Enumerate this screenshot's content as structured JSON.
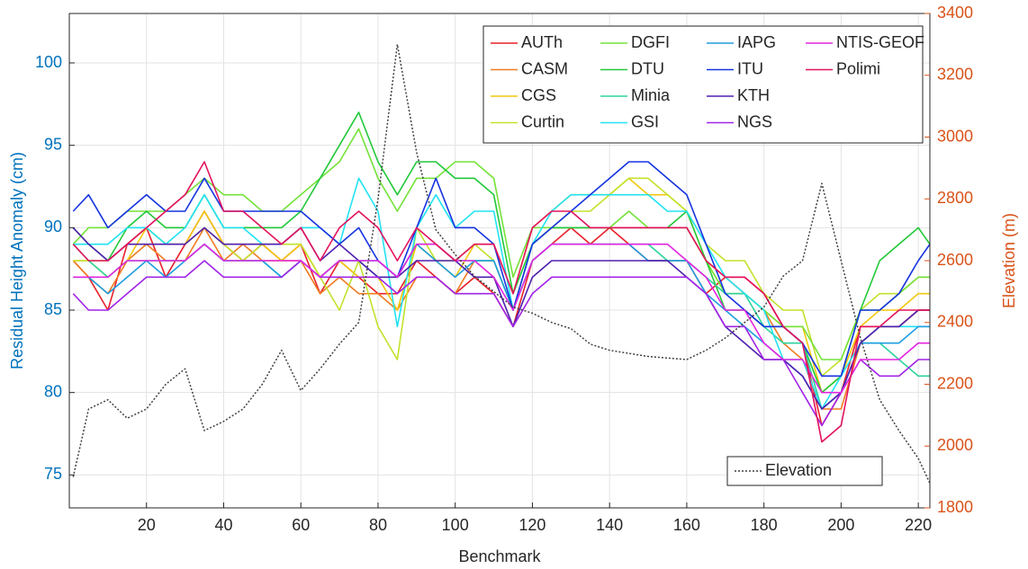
{
  "chart_data": {
    "type": "line",
    "x_label": "Benchmark",
    "y_label": "Residual Height Anomaly (cm)",
    "y2_label": "Elevation (m)",
    "x": [
      1,
      5,
      10,
      15,
      20,
      25,
      30,
      35,
      40,
      45,
      50,
      55,
      60,
      65,
      70,
      75,
      80,
      85,
      90,
      95,
      100,
      105,
      110,
      115,
      120,
      125,
      130,
      135,
      140,
      145,
      150,
      155,
      160,
      165,
      170,
      175,
      180,
      185,
      190,
      195,
      200,
      205,
      210,
      215,
      220,
      223
    ],
    "xlim": [
      0,
      223
    ],
    "xticks": [
      20,
      40,
      60,
      80,
      100,
      120,
      140,
      160,
      180,
      200,
      220
    ],
    "ylim": [
      73,
      103
    ],
    "yticks": [
      75,
      80,
      85,
      90,
      95,
      100
    ],
    "y2lim": [
      1800,
      3400
    ],
    "y2ticks": [
      1800,
      2000,
      2200,
      2400,
      2600,
      2800,
      3000,
      3200,
      3400
    ],
    "grid": true,
    "legend": "upper right",
    "series": [
      {
        "name": "AUTh",
        "color": "#e8202a",
        "values": [
          88,
          87,
          85,
          89,
          90,
          87,
          89,
          91,
          89,
          88,
          89,
          88,
          89,
          86,
          88,
          87,
          86,
          86,
          88,
          87,
          86,
          87,
          86,
          84,
          88,
          89,
          90,
          89,
          90,
          89,
          88,
          88,
          88,
          86,
          87,
          87,
          86,
          84,
          83,
          78,
          80,
          84,
          84,
          84,
          85,
          85
        ]
      },
      {
        "name": "CASM",
        "color": "#f07c20",
        "values": [
          88,
          87,
          86,
          88,
          89,
          88,
          88,
          90,
          88,
          89,
          88,
          88,
          88,
          86,
          87,
          86,
          86,
          85,
          87,
          87,
          86,
          88,
          88,
          85,
          89,
          90,
          90,
          90,
          90,
          90,
          90,
          90,
          90,
          88,
          87,
          86,
          85,
          83,
          82,
          79,
          79,
          83,
          84,
          84,
          85,
          85
        ]
      },
      {
        "name": "CGS",
        "color": "#f2c80f",
        "values": [
          88,
          88,
          87,
          88,
          90,
          89,
          89,
          91,
          89,
          89,
          89,
          88,
          89,
          87,
          88,
          87,
          87,
          85,
          89,
          88,
          87,
          89,
          89,
          86,
          90,
          91,
          92,
          92,
          92,
          93,
          92,
          92,
          91,
          88,
          86,
          86,
          85,
          84,
          84,
          80,
          81,
          84,
          85,
          85,
          86,
          86
        ]
      },
      {
        "name": "Curtin",
        "color": "#c2e22c",
        "values": [
          88,
          88,
          88,
          89,
          90,
          89,
          89,
          90,
          89,
          88,
          89,
          89,
          89,
          87,
          85,
          88,
          84,
          82,
          90,
          88,
          88,
          89,
          88,
          85,
          89,
          90,
          91,
          91,
          92,
          93,
          93,
          92,
          91,
          89,
          88,
          88,
          86,
          85,
          85,
          81,
          82,
          85,
          86,
          86,
          87,
          87
        ]
      },
      {
        "name": "DGFI",
        "color": "#74e23a",
        "values": [
          89,
          90,
          90,
          91,
          91,
          91,
          92,
          93,
          92,
          92,
          91,
          91,
          92,
          93,
          94,
          96,
          93,
          91,
          93,
          93,
          94,
          94,
          93,
          87,
          90,
          90,
          90,
          90,
          90,
          91,
          90,
          90,
          90,
          88,
          86,
          86,
          85,
          84,
          84,
          82,
          82,
          85,
          85,
          86,
          87,
          87
        ]
      },
      {
        "name": "DTU",
        "color": "#22c83a",
        "values": [
          90,
          89,
          88,
          90,
          91,
          90,
          90,
          92,
          90,
          90,
          90,
          90,
          91,
          93,
          95,
          97,
          94,
          92,
          94,
          94,
          93,
          93,
          92,
          86,
          89,
          90,
          90,
          90,
          90,
          90,
          90,
          90,
          91,
          88,
          85,
          85,
          84,
          84,
          83,
          80,
          81,
          85,
          88,
          89,
          90,
          89
        ]
      },
      {
        "name": "Minia",
        "color": "#2ed39e",
        "values": [
          89,
          88,
          87,
          88,
          88,
          88,
          88,
          89,
          88,
          88,
          88,
          87,
          88,
          87,
          88,
          88,
          87,
          87,
          89,
          89,
          88,
          88,
          88,
          85,
          88,
          89,
          89,
          89,
          89,
          89,
          89,
          88,
          88,
          87,
          86,
          86,
          84,
          83,
          83,
          79,
          80,
          83,
          83,
          82,
          81,
          81
        ]
      },
      {
        "name": "GSI",
        "color": "#22e2f2",
        "values": [
          89,
          89,
          89,
          90,
          90,
          89,
          90,
          92,
          90,
          90,
          89,
          89,
          90,
          90,
          89,
          93,
          91,
          84,
          90,
          92,
          90,
          91,
          91,
          85,
          89,
          91,
          92,
          92,
          92,
          92,
          92,
          91,
          91,
          89,
          87,
          86,
          85,
          82,
          82,
          79,
          81,
          83,
          84,
          84,
          84,
          84
        ]
      },
      {
        "name": "IAPG",
        "color": "#1f9ee0",
        "values": [
          87,
          87,
          86,
          87,
          88,
          87,
          88,
          89,
          88,
          88,
          88,
          87,
          88,
          87,
          88,
          88,
          88,
          87,
          89,
          88,
          87,
          88,
          88,
          85,
          88,
          89,
          89,
          89,
          89,
          89,
          88,
          88,
          88,
          86,
          85,
          84,
          83,
          82,
          81,
          79,
          80,
          83,
          83,
          83,
          84,
          84
        ]
      },
      {
        "name": "ITU",
        "color": "#1634e0",
        "values": [
          91,
          92,
          90,
          91,
          92,
          91,
          91,
          93,
          91,
          91,
          91,
          91,
          91,
          90,
          89,
          90,
          88,
          87,
          90,
          93,
          90,
          90,
          89,
          85,
          89,
          90,
          91,
          92,
          93,
          94,
          94,
          93,
          92,
          89,
          86,
          85,
          84,
          84,
          83,
          81,
          81,
          85,
          85,
          86,
          88,
          89
        ]
      },
      {
        "name": "KTH",
        "color": "#5020b0",
        "values": [
          90,
          89,
          88,
          89,
          89,
          89,
          89,
          90,
          89,
          89,
          89,
          89,
          90,
          88,
          89,
          88,
          87,
          87,
          88,
          88,
          88,
          87,
          87,
          84,
          87,
          88,
          88,
          88,
          88,
          88,
          88,
          88,
          87,
          86,
          84,
          83,
          82,
          82,
          81,
          79,
          80,
          83,
          84,
          84,
          85,
          85
        ]
      },
      {
        "name": "NGS",
        "color": "#a224e6",
        "values": [
          86,
          85,
          85,
          86,
          87,
          87,
          87,
          88,
          87,
          87,
          87,
          87,
          88,
          87,
          87,
          87,
          87,
          86,
          87,
          87,
          86,
          86,
          86,
          84,
          86,
          87,
          87,
          87,
          87,
          87,
          87,
          87,
          87,
          86,
          84,
          84,
          82,
          82,
          80,
          78,
          80,
          82,
          81,
          81,
          82,
          82
        ]
      },
      {
        "name": "NTIS-GEOF",
        "color": "#e224e0",
        "values": [
          87,
          87,
          87,
          88,
          88,
          88,
          88,
          89,
          88,
          88,
          88,
          88,
          88,
          87,
          88,
          88,
          88,
          87,
          89,
          89,
          88,
          88,
          87,
          85,
          88,
          89,
          89,
          89,
          89,
          89,
          89,
          89,
          88,
          87,
          85,
          85,
          83,
          82,
          82,
          80,
          80,
          82,
          82,
          82,
          83,
          83
        ]
      },
      {
        "name": "Polimi",
        "color": "#e3125e",
        "values": [
          89,
          88,
          88,
          89,
          90,
          91,
          92,
          94,
          91,
          91,
          90,
          89,
          90,
          88,
          90,
          91,
          90,
          88,
          90,
          89,
          88,
          89,
          89,
          86,
          90,
          91,
          91,
          90,
          90,
          90,
          90,
          90,
          90,
          88,
          87,
          87,
          86,
          84,
          83,
          77,
          78,
          84,
          84,
          85,
          85,
          85
        ]
      },
      {
        "name": "Elevation",
        "color": "#404040",
        "axis": "y2",
        "dashed": true,
        "values": [
          1900,
          2120,
          2150,
          2090,
          2120,
          2200,
          2250,
          2050,
          2080,
          2120,
          2200,
          2310,
          2180,
          2250,
          2330,
          2400,
          2800,
          3300,
          2950,
          2700,
          2620,
          2550,
          2500,
          2450,
          2430,
          2400,
          2380,
          2330,
          2310,
          2300,
          2290,
          2285,
          2280,
          2310,
          2350,
          2400,
          2450,
          2550,
          2600,
          2850,
          2600,
          2350,
          2150,
          2050,
          1960,
          1880
        ]
      }
    ]
  }
}
